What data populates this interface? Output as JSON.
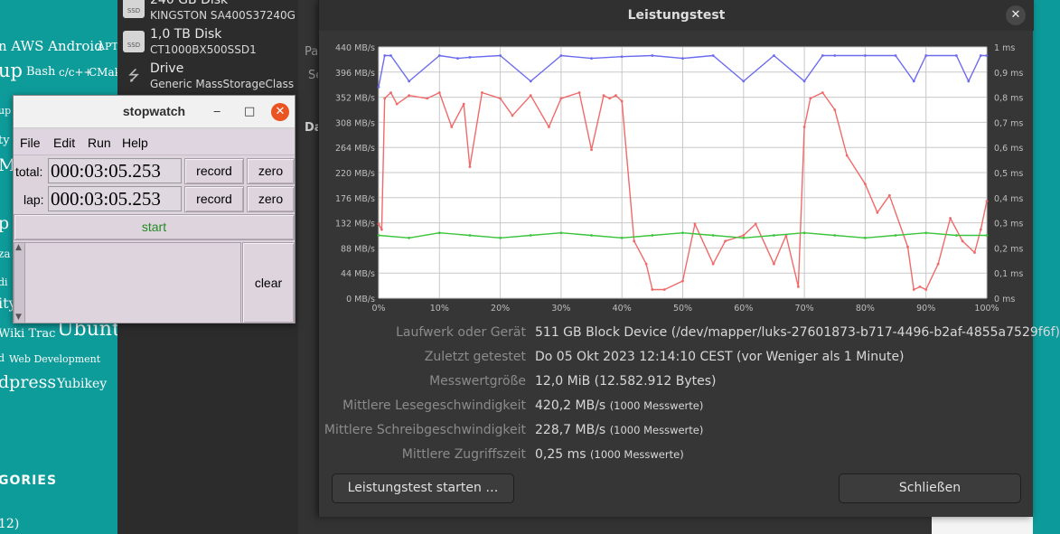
{
  "background_left": {
    "tags": [
      "n AWS Android",
      "APT",
      "up",
      "Bash",
      "c/c++",
      "CMak",
      "up",
      "ty",
      "M",
      "p",
      "za",
      "di",
      "ity",
      "Wiki Trac",
      "Ubunt",
      "d",
      "Web Development",
      "dpress",
      "Yubikey"
    ],
    "section_heading": "GORIES",
    "bottom_text": "12)"
  },
  "disk_list": [
    {
      "title": "240 GB Disk",
      "subtitle": "KINGSTON SA400S37240G",
      "icon": "SSD"
    },
    {
      "title": "1,0 TB Disk",
      "subtitle": "CT1000BX500SSD1",
      "icon": "SSD"
    },
    {
      "title": "Drive",
      "subtitle": "Generic MassStorageClass",
      "icon": "usb-icon"
    }
  ],
  "disk_main_ghost": [
    "Pa",
    "Se",
    "Da"
  ],
  "stopwatch": {
    "title": "stopwatch",
    "menu": [
      "File",
      "Edit",
      "Run",
      "Help"
    ],
    "total_label": "total:",
    "total_value": "000:03:05.253",
    "lap_label": "lap:",
    "lap_value": "000:03:05.253",
    "record_label": "record",
    "zero_label": "zero",
    "start_label": "start",
    "clear_label": "clear",
    "minimize": "‒",
    "maximize": "□",
    "close": "✕"
  },
  "dialog": {
    "title": "Leistungstest",
    "close": "✕",
    "info": [
      {
        "label": "Laufwerk oder Gerät",
        "value": "511 GB Block Device (/dev/mapper/luks-27601873-b717-4496-b2af-4855a7529f6f)",
        "note": ""
      },
      {
        "label": "Zuletzt getestet",
        "value": "Do 05 Okt 2023 12:14:10 CEST (vor Weniger als 1 Minute)",
        "note": ""
      },
      {
        "label": "Messwertgröße",
        "value": "12,0 MiB (12.582.912 Bytes)",
        "note": ""
      },
      {
        "label": "Mittlere Lesegeschwindigkeit",
        "value": "420,2 MB/s",
        "note": "(1000 Messwerte)"
      },
      {
        "label": "Mittlere Schreibgeschwindigkeit",
        "value": "228,7 MB/s",
        "note": "(1000 Messwerte)"
      },
      {
        "label": "Mittlere Zugriffszeit",
        "value": "0,25 ms",
        "note": "(1000 Messwerte)"
      }
    ],
    "start_button": "Leistungstest starten …",
    "close_button": "Schließen"
  },
  "chart_data": {
    "type": "line",
    "x_tick_labels": [
      "0%",
      "10%",
      "20%",
      "30%",
      "40%",
      "50%",
      "60%",
      "70%",
      "80%",
      "90%",
      "100%"
    ],
    "y_left_tick_labels": [
      "0 MB/s",
      "44 MB/s",
      "88 MB/s",
      "132 MB/s",
      "176 MB/s",
      "220 MB/s",
      "264 MB/s",
      "308 MB/s",
      "352 MB/s",
      "396 MB/s",
      "440 MB/s"
    ],
    "y_right_tick_labels": [
      "0 ms",
      "0,1 ms",
      "0,2 ms",
      "0,3 ms",
      "0,4 ms",
      "0,5 ms",
      "0,6 ms",
      "0,7 ms",
      "0,8 ms",
      "0,9 ms",
      "1 ms"
    ],
    "y_left_range": [
      0,
      440
    ],
    "y_right_range": [
      0,
      1
    ],
    "x_range": [
      0,
      100
    ],
    "grid": true,
    "series": [
      {
        "color": "#6b6bf0",
        "axis": "left",
        "x": [
          0,
          1,
          2,
          5,
          10,
          13,
          15,
          20,
          25,
          30,
          35,
          40,
          45,
          50,
          55,
          60,
          65,
          70,
          73,
          75,
          80,
          85,
          88,
          90,
          95,
          97,
          99,
          100
        ],
        "values": [
          370,
          425,
          425,
          380,
          425,
          420,
          422,
          425,
          380,
          425,
          420,
          423,
          425,
          420,
          425,
          380,
          425,
          380,
          425,
          425,
          425,
          425,
          380,
          425,
          425,
          380,
          425,
          425
        ]
      },
      {
        "color": "#f06a6a",
        "axis": "left",
        "x": [
          0,
          0.5,
          1,
          2,
          3,
          5,
          8,
          10,
          12,
          14,
          15,
          17,
          20,
          22,
          25,
          28,
          30,
          33,
          35,
          37,
          38,
          39,
          40,
          42,
          44,
          45,
          47,
          50,
          52,
          55,
          57,
          60,
          62,
          65,
          67,
          69,
          70,
          71,
          73,
          75,
          77,
          80,
          82,
          84,
          87,
          88,
          89,
          90,
          92,
          94,
          96,
          98,
          99,
          100
        ],
        "values": [
          130,
          120,
          350,
          360,
          340,
          355,
          350,
          360,
          300,
          340,
          230,
          360,
          350,
          320,
          355,
          300,
          350,
          360,
          260,
          355,
          350,
          355,
          345,
          100,
          60,
          15,
          15,
          30,
          130,
          60,
          100,
          110,
          130,
          60,
          110,
          20,
          300,
          350,
          360,
          330,
          250,
          200,
          150,
          180,
          90,
          15,
          20,
          15,
          60,
          140,
          100,
          80,
          120,
          170
        ]
      },
      {
        "color": "#3cc43c",
        "axis": "right",
        "x": [
          0,
          5,
          10,
          15,
          20,
          25,
          30,
          35,
          40,
          45,
          50,
          55,
          60,
          65,
          70,
          75,
          80,
          85,
          90,
          95,
          100
        ],
        "values": [
          0.25,
          0.24,
          0.26,
          0.25,
          0.24,
          0.25,
          0.26,
          0.25,
          0.24,
          0.25,
          0.26,
          0.25,
          0.24,
          0.25,
          0.26,
          0.25,
          0.24,
          0.25,
          0.26,
          0.25,
          0.25
        ]
      }
    ]
  }
}
